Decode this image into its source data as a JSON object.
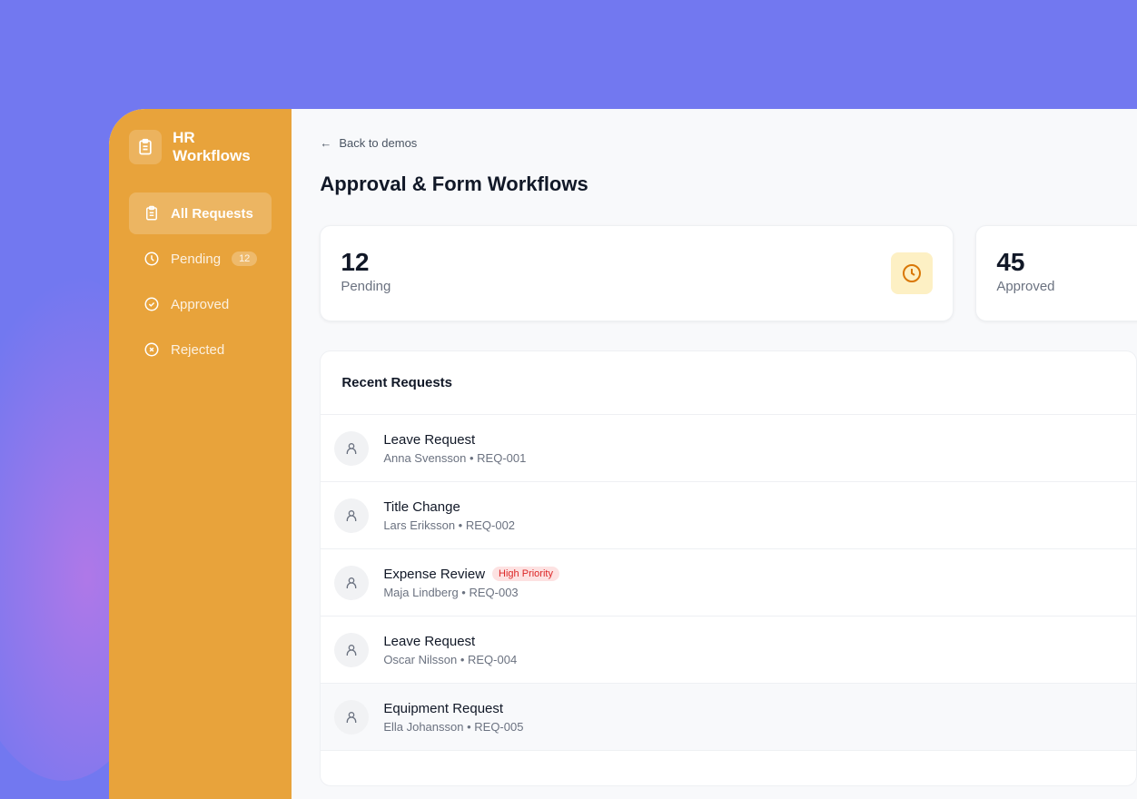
{
  "sidebar": {
    "title": "HR Workflows",
    "items": [
      {
        "label": "All Requests",
        "icon": "clipboard-icon",
        "active": true
      },
      {
        "label": "Pending",
        "icon": "clock-icon",
        "badge": "12"
      },
      {
        "label": "Approved",
        "icon": "check-circle-icon"
      },
      {
        "label": "Rejected",
        "icon": "x-circle-icon"
      }
    ]
  },
  "main": {
    "back": "Back to demos",
    "title": "Approval & Form Workflows",
    "stats": [
      {
        "value": "12",
        "label": "Pending"
      },
      {
        "value": "45",
        "label": "Approved"
      }
    ],
    "recent": {
      "title": "Recent Requests",
      "rows": [
        {
          "title": "Leave Request",
          "meta": "Anna Svensson • REQ-001"
        },
        {
          "title": "Title Change",
          "meta": "Lars Eriksson • REQ-002"
        },
        {
          "title": "Expense Review",
          "meta": "Maja Lindberg • REQ-003",
          "tag": "High Priority"
        },
        {
          "title": "Leave Request",
          "meta": "Oscar Nilsson • REQ-004"
        },
        {
          "title": "Equipment Request",
          "meta": "Ella Johansson • REQ-005"
        }
      ]
    }
  },
  "colors": {
    "background": "#7278f0",
    "sidebar": "#e8a33b",
    "priority": "#dc2626"
  }
}
